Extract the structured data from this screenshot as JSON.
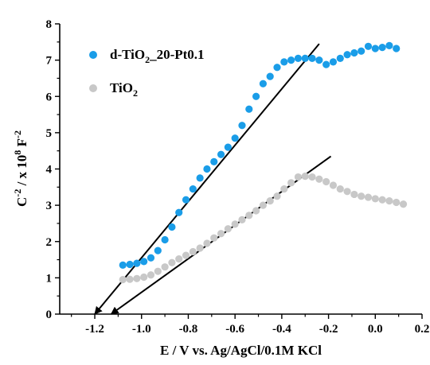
{
  "chart_data": {
    "type": "scatter",
    "xlabel": "E / V vs. Ag/AgCl/0.1M KCl",
    "ylabel_parts": [
      "C",
      "-2",
      " / x 10",
      "8",
      " F",
      "-2"
    ],
    "xlim": [
      -1.35,
      0.2
    ],
    "ylim": [
      0,
      8
    ],
    "x_ticks": [
      "-1.2",
      "-1.0",
      "-0.8",
      "-0.6",
      "-0.4",
      "-0.2",
      "0.0",
      "0.2"
    ],
    "x_tick_values": [
      -1.2,
      -1.0,
      -0.8,
      -0.6,
      -0.4,
      -0.2,
      0.0,
      0.2
    ],
    "y_ticks": [
      "0",
      "1",
      "2",
      "3",
      "4",
      "5",
      "6",
      "7",
      "8"
    ],
    "y_tick_values": [
      0,
      1,
      2,
      3,
      4,
      5,
      6,
      7,
      8
    ],
    "series": [
      {
        "name_parts": [
          "d-TiO",
          "2",
          "_20-Pt0.1"
        ],
        "color": "#1a9de8",
        "x": [
          -1.08,
          -1.05,
          -1.02,
          -0.99,
          -0.96,
          -0.93,
          -0.9,
          -0.87,
          -0.84,
          -0.81,
          -0.78,
          -0.75,
          -0.72,
          -0.69,
          -0.66,
          -0.63,
          -0.6,
          -0.57,
          -0.54,
          -0.51,
          -0.48,
          -0.45,
          -0.42,
          -0.39,
          -0.36,
          -0.33,
          -0.3,
          -0.27,
          -0.24,
          -0.21,
          -0.18,
          -0.15,
          -0.12,
          -0.09,
          -0.06,
          -0.03,
          0.0,
          0.03,
          0.06,
          0.09
        ],
        "y": [
          1.35,
          1.37,
          1.4,
          1.45,
          1.55,
          1.75,
          2.05,
          2.4,
          2.8,
          3.15,
          3.45,
          3.75,
          4.0,
          4.2,
          4.4,
          4.6,
          4.85,
          5.2,
          5.65,
          6.0,
          6.35,
          6.55,
          6.8,
          6.95,
          7.0,
          7.05,
          7.05,
          7.05,
          7.0,
          6.88,
          6.95,
          7.05,
          7.15,
          7.2,
          7.25,
          7.38,
          7.32,
          7.35,
          7.4,
          7.32
        ]
      },
      {
        "name_parts": [
          "TiO",
          "2",
          ""
        ],
        "color": "#c8c8c8",
        "x": [
          -1.08,
          -1.05,
          -1.02,
          -0.99,
          -0.96,
          -0.93,
          -0.9,
          -0.87,
          -0.84,
          -0.81,
          -0.78,
          -0.75,
          -0.72,
          -0.69,
          -0.66,
          -0.63,
          -0.6,
          -0.57,
          -0.54,
          -0.51,
          -0.48,
          -0.45,
          -0.42,
          -0.39,
          -0.36,
          -0.33,
          -0.3,
          -0.27,
          -0.24,
          -0.21,
          -0.18,
          -0.15,
          -0.12,
          -0.09,
          -0.06,
          -0.03,
          0.0,
          0.03,
          0.06,
          0.09,
          0.12
        ],
        "y": [
          0.95,
          0.96,
          0.98,
          1.02,
          1.08,
          1.18,
          1.3,
          1.42,
          1.52,
          1.62,
          1.72,
          1.82,
          1.95,
          2.1,
          2.22,
          2.35,
          2.48,
          2.6,
          2.72,
          2.85,
          3.0,
          3.12,
          3.25,
          3.45,
          3.62,
          3.78,
          3.8,
          3.78,
          3.72,
          3.65,
          3.55,
          3.45,
          3.38,
          3.3,
          3.25,
          3.22,
          3.18,
          3.15,
          3.12,
          3.08,
          3.03
        ]
      }
    ],
    "fit_lines": [
      {
        "x": [
          -1.2,
          -0.24
        ],
        "y": [
          0.0,
          7.45
        ]
      },
      {
        "x": [
          -1.13,
          -0.19
        ],
        "y": [
          0.0,
          4.35
        ]
      }
    ]
  }
}
